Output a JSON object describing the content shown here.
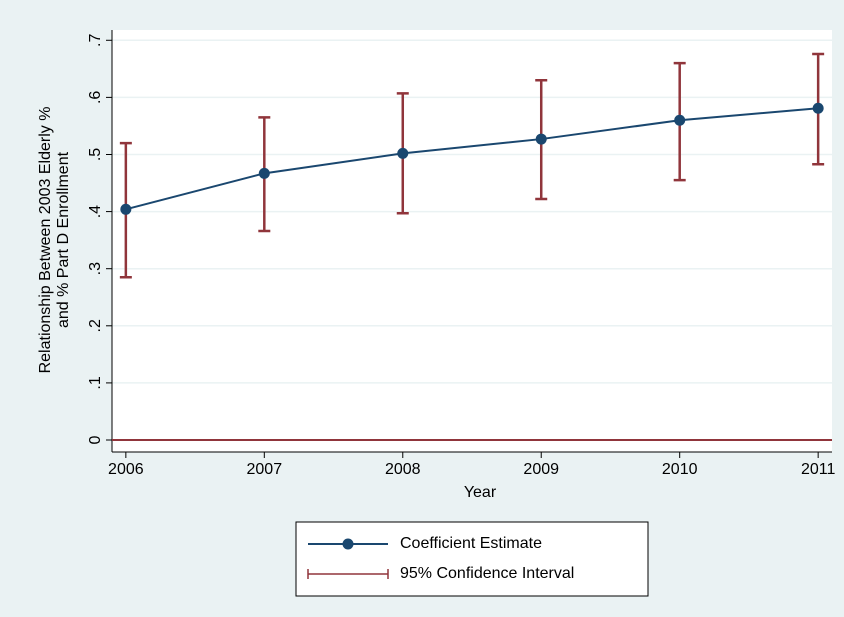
{
  "chart_data": {
    "type": "line",
    "xlabel": "Year",
    "ylabel": [
      "Relationship Between 2003 Elderly %",
      "and % Part D Enrollment"
    ],
    "x": [
      2006,
      2007,
      2008,
      2009,
      2010,
      2011
    ],
    "series": [
      {
        "name": "Coefficient Estimate",
        "color": "#1a476f",
        "values": [
          0.404,
          0.467,
          0.502,
          0.527,
          0.56,
          0.581
        ]
      },
      {
        "name": "95% Confidence Interval",
        "color": "#90353b",
        "lower": [
          0.285,
          0.366,
          0.397,
          0.422,
          0.455,
          0.483
        ],
        "upper": [
          0.52,
          0.565,
          0.607,
          0.63,
          0.66,
          0.676
        ]
      }
    ],
    "refline": {
      "value": 0,
      "color": "#90353b"
    },
    "xlim": [
      2005.9,
      2011.1
    ],
    "xticks": [
      2006,
      2007,
      2008,
      2009,
      2010,
      2011
    ],
    "ylim": [
      -0.021,
      0.718
    ],
    "yticks": [
      0,
      {
        "value": 0.1,
        "label": ".1"
      },
      {
        "value": 0.2,
        "label": ".2"
      },
      {
        "value": 0.3,
        "label": ".3"
      },
      {
        "value": 0.4,
        "label": ".4"
      },
      {
        "value": 0.5,
        "label": ".5"
      },
      {
        "value": 0.6,
        "label": ".6"
      },
      {
        "value": 0.7,
        "label": ".7"
      }
    ],
    "grid": true
  }
}
